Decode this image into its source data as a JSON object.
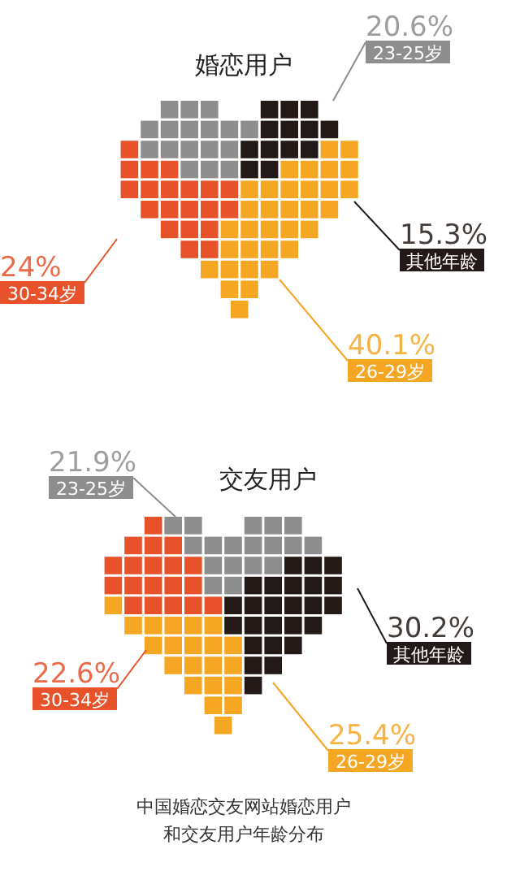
{
  "chart_data": [
    {
      "type": "other",
      "title": "婚恋用户",
      "categories": [
        "23-25岁",
        "其他年龄",
        "26-29岁",
        "30-34岁"
      ],
      "values": [
        20.6,
        15.3,
        40.1,
        24
      ],
      "value_labels": [
        "20.6%",
        "15.3%",
        "40.1%",
        "24%"
      ],
      "colors": [
        "#8e8e8e",
        "#231916",
        "#f5a623",
        "#e8522a"
      ]
    },
    {
      "type": "other",
      "title": "交友用户",
      "categories": [
        "23-25岁",
        "其他年龄",
        "26-29岁",
        "30-34岁"
      ],
      "values": [
        21.9,
        30.2,
        25.4,
        22.6
      ],
      "value_labels": [
        "21.9%",
        "30.2%",
        "25.4%",
        "22.6%"
      ],
      "colors": [
        "#8e8e8e",
        "#231916",
        "#f5a623",
        "#e8522a"
      ],
      "annotations": [
        "中国婚恋交友网站婚恋用户和交友用户年龄分布"
      ]
    }
  ]
}
